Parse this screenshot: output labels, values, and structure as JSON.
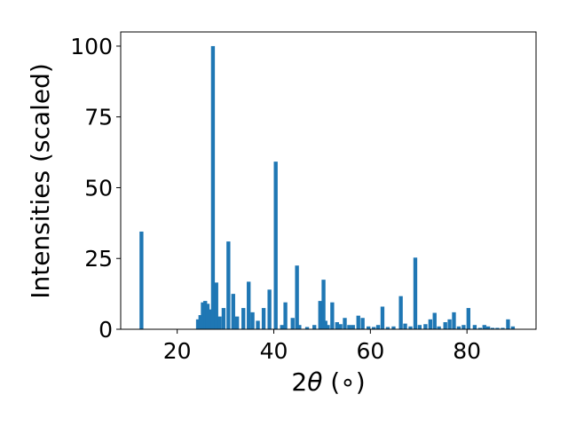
{
  "chart_data": {
    "type": "bar",
    "xlabel": "2θ (∘)",
    "xlabel_parts": {
      "two": "2",
      "theta": "θ",
      "degree": " (∘)"
    },
    "ylabel": "Intensities (scaled)",
    "xlim": [
      8.3,
      94.3
    ],
    "ylim": [
      0,
      105
    ],
    "xticks": [
      20,
      40,
      60,
      80
    ],
    "xtick_labels": [
      "20",
      "40",
      "60",
      "80"
    ],
    "yticks": [
      0,
      25,
      50,
      75,
      100
    ],
    "ytick_labels": [
      "0",
      "25",
      "50",
      "75",
      "100"
    ],
    "grid": false,
    "bar_width": 0.8,
    "bar_color": "#1f77b4",
    "x": [
      12.6,
      24.3,
      24.8,
      25.3,
      25.8,
      26.3,
      26.8,
      27.4,
      28.1,
      28.8,
      29.6,
      30.6,
      31.6,
      32.4,
      33.7,
      34.8,
      35.6,
      36.7,
      37.9,
      39.1,
      40.4,
      41.7,
      42.4,
      43.9,
      44.8,
      45.3,
      46.9,
      48.4,
      49.6,
      50.3,
      50.7,
      51.2,
      52.1,
      53.1,
      53.8,
      54.7,
      55.6,
      56.4,
      57.5,
      58.4,
      59.6,
      60.7,
      61.6,
      62.5,
      63.6,
      64.8,
      66.3,
      67.2,
      68.3,
      69.3,
      70.2,
      71.4,
      72.4,
      73.3,
      74.2,
      75.5,
      76.4,
      77.3,
      78.3,
      79.3,
      80.3,
      81.6,
      82.7,
      83.6,
      84.4,
      85.3,
      86.3,
      87.4,
      88.5,
      89.5
    ],
    "values": [
      34.5,
      3.5,
      5.0,
      9.5,
      10.0,
      9.0,
      7.0,
      100.0,
      16.5,
      4.5,
      7.5,
      31.0,
      12.5,
      4.5,
      7.5,
      16.8,
      6.0,
      3.0,
      7.5,
      14.0,
      59.2,
      1.5,
      9.5,
      4.0,
      22.5,
      1.5,
      0.8,
      1.5,
      10.0,
      17.5,
      3.0,
      1.5,
      9.5,
      2.5,
      1.8,
      4.0,
      1.5,
      1.5,
      4.8,
      4.0,
      1.0,
      0.8,
      1.5,
      8.0,
      0.8,
      1.0,
      11.7,
      2.0,
      1.0,
      25.3,
      1.5,
      1.8,
      3.5,
      5.8,
      1.0,
      2.5,
      3.5,
      6.0,
      1.0,
      1.5,
      7.5,
      1.5,
      0.5,
      1.5,
      1.0,
      0.5,
      0.5,
      0.5,
      3.5,
      1.0
    ]
  }
}
